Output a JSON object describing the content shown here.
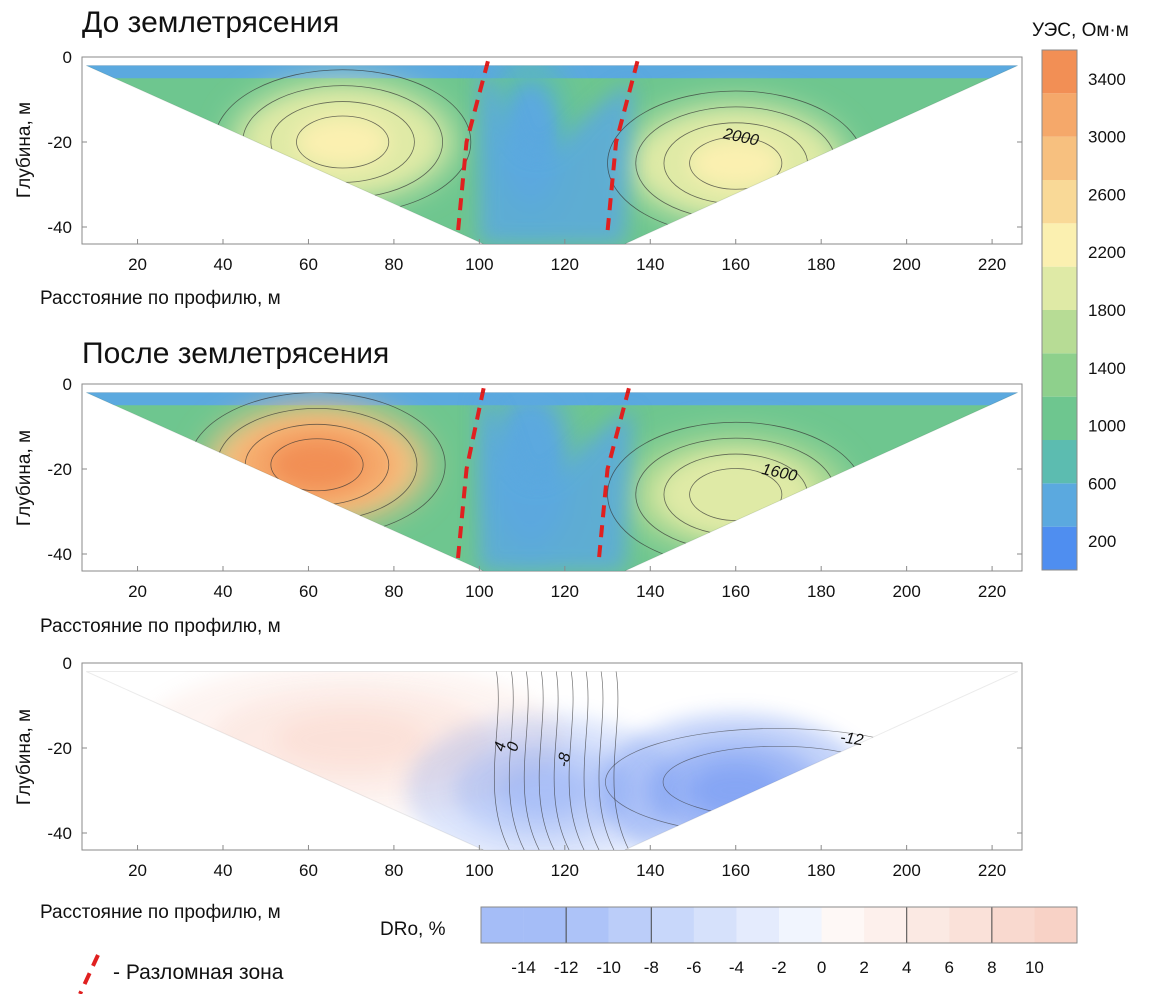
{
  "chart_data": [
    {
      "type": "heatmap",
      "title": "До землетрясения",
      "xlabel": "Расстояние по профилю, м",
      "ylabel": "Глубина, м",
      "xlim": [
        7,
        227
      ],
      "ylim": [
        -44,
        0
      ],
      "x_ticks": [
        20,
        40,
        60,
        80,
        100,
        120,
        140,
        160,
        180,
        200,
        220
      ],
      "y_ticks": [
        0,
        -20,
        -40
      ],
      "contour_labels": [
        {
          "x": 161,
          "y": -20,
          "text": "2000"
        }
      ],
      "fault_lines": [
        [
          [
            102,
            -1
          ],
          [
            97,
            -20
          ],
          [
            95,
            -41
          ]
        ],
        [
          [
            137,
            -1
          ],
          [
            132,
            -20
          ],
          [
            130,
            -41
          ]
        ]
      ],
      "anomalies": [
        {
          "x": 68,
          "y": -20,
          "value": 2300
        },
        {
          "x": 160,
          "y": -25,
          "value": 2200
        },
        {
          "x": 112,
          "y": -20,
          "value": 500
        }
      ]
    },
    {
      "type": "heatmap",
      "title": "После землетрясения",
      "xlabel": "Расстояние по профилю, м",
      "ylabel": "Глубина, м",
      "xlim": [
        7,
        227
      ],
      "ylim": [
        -44,
        0
      ],
      "x_ticks": [
        20,
        40,
        60,
        80,
        100,
        120,
        140,
        160,
        180,
        200,
        220
      ],
      "y_ticks": [
        0,
        -20,
        -40
      ],
      "contour_labels": [
        {
          "x": 170,
          "y": -22,
          "text": "1600"
        }
      ],
      "fault_lines": [
        [
          [
            101,
            -1
          ],
          [
            97,
            -20
          ],
          [
            95,
            -41
          ]
        ],
        [
          [
            135,
            -1
          ],
          [
            130,
            -20
          ],
          [
            128,
            -41
          ]
        ]
      ],
      "anomalies": [
        {
          "x": 62,
          "y": -19,
          "value": 3400
        },
        {
          "x": 160,
          "y": -26,
          "value": 2000
        },
        {
          "x": 112,
          "y": -20,
          "value": 450
        }
      ]
    },
    {
      "type": "heatmap",
      "title": "",
      "xlabel": "Расстояние по профилю, м",
      "ylabel": "Глубина, м",
      "xlim": [
        7,
        227
      ],
      "ylim": [
        -44,
        0
      ],
      "x_ticks": [
        20,
        40,
        60,
        80,
        100,
        120,
        140,
        160,
        180,
        200,
        220
      ],
      "y_ticks": [
        0,
        -20,
        -40
      ],
      "contour_labels": [
        {
          "x": 106,
          "y": -20,
          "text": "4",
          "rotate": -75
        },
        {
          "x": 109,
          "y": -20,
          "text": "0",
          "rotate": -75
        },
        {
          "x": 121,
          "y": -23,
          "text": "-8",
          "rotate": -80
        },
        {
          "x": 187,
          "y": -19,
          "text": "-12",
          "rotate": 8
        }
      ],
      "anomalies": [
        {
          "x": 70,
          "y": -18,
          "value": 3
        },
        {
          "x": 160,
          "y": -30,
          "value": -13
        },
        {
          "x": 115,
          "y": -30,
          "value": -6
        }
      ]
    }
  ],
  "colorbar_res": {
    "title": "УЭС, Ом·м",
    "ticks": [
      200,
      600,
      1000,
      1400,
      1800,
      2200,
      2600,
      3000,
      3400
    ],
    "range": [
      0,
      3600
    ]
  },
  "colorbar_dro": {
    "title": "DRo, %",
    "ticks": [
      -14,
      -12,
      -10,
      -8,
      -6,
      -4,
      -2,
      0,
      2,
      4,
      6,
      8,
      10
    ],
    "range": [
      -16,
      12
    ]
  },
  "legend": {
    "fault_label": "- Разломная зона"
  },
  "colors": {
    "res_scale": [
      "#4f8ef0",
      "#5ba9df",
      "#5cbcb0",
      "#6ec68f",
      "#8ed08c",
      "#b7dc95",
      "#dfeaa6",
      "#fbf0b0",
      "#f9d997",
      "#f7c07f",
      "#f5a86a",
      "#f28f55"
    ],
    "dro_neg": "#5b86f0",
    "dro_pos": "#f0a48c",
    "fault": "#e02020",
    "frame": "#8a8a8a"
  }
}
